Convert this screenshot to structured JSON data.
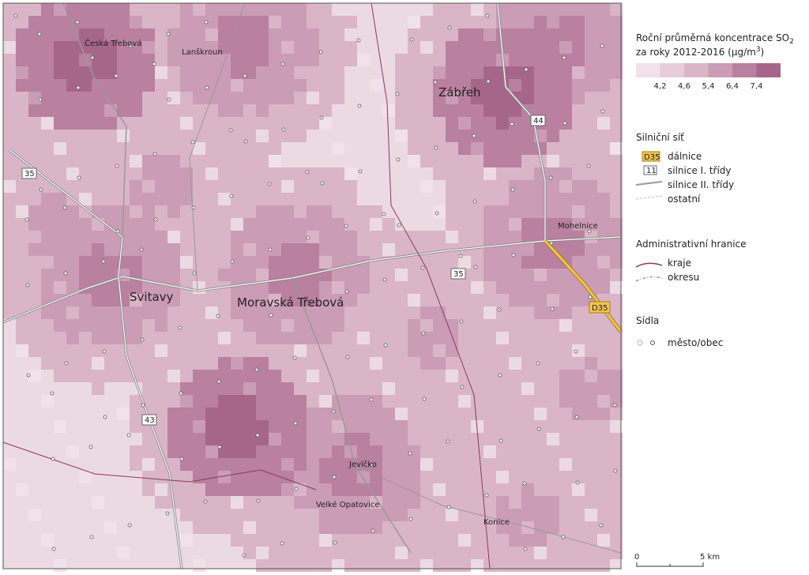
{
  "map": {
    "places": [
      "Česká Třebová",
      "Lanškroun",
      "Zábřeh",
      "Mohelnice",
      "Svitavy",
      "Moravská Třebová",
      "Jevíčko",
      "Velké Opatovice",
      "Konice"
    ],
    "road_numbers": [
      "35",
      "44",
      "35",
      "D35",
      "43"
    ]
  },
  "legend": {
    "concentration": {
      "title_1": "Roční průměrná koncentrace SO",
      "title_sub": "2",
      "title_2": "za roky 2012-2016 (μg/m",
      "title_sup": "3",
      "title_end": ")",
      "classes": [
        "4,2",
        "4,6",
        "5,4",
        "6,4",
        "7,4"
      ]
    },
    "roads": {
      "title": "Silniční síť",
      "items": [
        "dálnice",
        "silnice I. třídy",
        "silnice II. třídy",
        "ostatní"
      ],
      "icon_labels": [
        "D35",
        "11"
      ]
    },
    "borders": {
      "title": "Administrativní hranice",
      "items": [
        "kraje",
        "okresu"
      ]
    },
    "settlements": {
      "title": "Sídla",
      "items": [
        "město/obec"
      ]
    }
  },
  "scale": {
    "start": "0",
    "end": "5 km"
  }
}
